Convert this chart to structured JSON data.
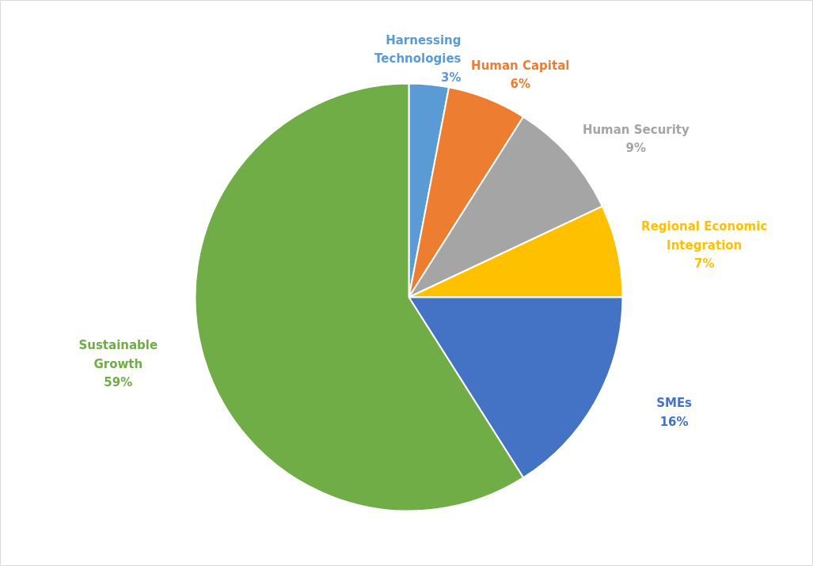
{
  "chart_data": {
    "type": "pie",
    "categories": [
      "Harnessing Technologies",
      "Human Capital",
      "Human Security",
      "Regional Economic Integration",
      "SMEs",
      "Sustainable Growth"
    ],
    "values": [
      3,
      6,
      9,
      7,
      16,
      59
    ],
    "colors": [
      "#5b9bd5",
      "#ed7d31",
      "#a5a5a5",
      "#ffc000",
      "#4472c4",
      "#70ad47"
    ],
    "value_labels": [
      "3%",
      "6%",
      "9%",
      "7%",
      "16%",
      "59%"
    ]
  }
}
